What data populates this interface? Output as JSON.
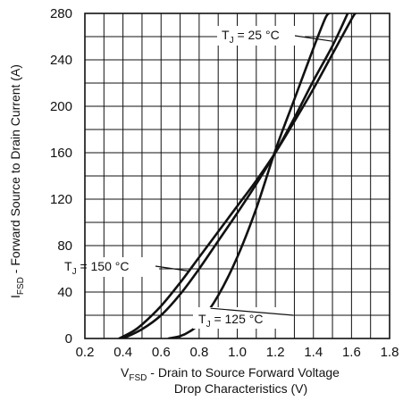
{
  "chart_data": {
    "type": "line",
    "title": "",
    "xlabel": {
      "symbol": "V",
      "subscript": "FSD",
      "text_line1": " - Drain to Source Forward Voltage",
      "text_line2": "Drop Characteristics (V)"
    },
    "ylabel": {
      "symbol": "I",
      "subscript": "FSD",
      "text": " - Forward Source to Drain Current  (A)"
    },
    "xlim": [
      0.2,
      1.8
    ],
    "ylim": [
      0,
      280
    ],
    "xticks": [
      "0.2",
      "0.4",
      "0.6",
      "0.8",
      "1.0",
      "1.2",
      "1.4",
      "1.6",
      "1.8"
    ],
    "yticks": [
      "0",
      "40",
      "80",
      "120",
      "160",
      "200",
      "240",
      "280"
    ],
    "x_minor_step": 0.1,
    "y_minor_step": 20,
    "grid": true,
    "series": [
      {
        "name": "TJ = 25 °C",
        "points": [
          [
            0.64,
            0
          ],
          [
            0.7,
            2
          ],
          [
            0.75,
            6
          ],
          [
            0.8,
            13
          ],
          [
            0.9,
            37
          ],
          [
            1.0,
            70
          ],
          [
            1.1,
            112
          ],
          [
            1.2,
            162
          ],
          [
            1.3,
            206
          ],
          [
            1.4,
            250
          ],
          [
            1.46,
            275
          ],
          [
            1.48,
            280
          ]
        ]
      },
      {
        "name": "TJ = 125 °C",
        "points": [
          [
            0.38,
            0
          ],
          [
            0.45,
            6
          ],
          [
            0.5,
            12
          ],
          [
            0.6,
            28
          ],
          [
            0.7,
            48
          ],
          [
            0.8,
            70
          ],
          [
            0.9,
            92
          ],
          [
            1.0,
            114
          ],
          [
            1.1,
            136
          ],
          [
            1.2,
            160
          ],
          [
            1.3,
            187
          ],
          [
            1.4,
            215
          ],
          [
            1.5,
            245
          ],
          [
            1.6,
            275
          ],
          [
            1.62,
            280
          ]
        ]
      },
      {
        "name": "TJ = 150 °C",
        "points": [
          [
            0.4,
            0
          ],
          [
            0.5,
            8
          ],
          [
            0.6,
            20
          ],
          [
            0.7,
            38
          ],
          [
            0.8,
            60
          ],
          [
            0.9,
            84
          ],
          [
            1.0,
            108
          ],
          [
            1.1,
            133
          ],
          [
            1.2,
            160
          ],
          [
            1.3,
            190
          ],
          [
            1.4,
            222
          ],
          [
            1.5,
            252
          ],
          [
            1.58,
            280
          ]
        ]
      }
    ],
    "annotations": [
      {
        "text_symbol": "T",
        "text_sub": "J",
        "text_rest": " = 25 °C",
        "series": "TJ = 25 °C",
        "anchor": [
          1.5,
          256
        ]
      },
      {
        "text_symbol": "T",
        "text_sub": "J",
        "text_rest": " = 150 °C",
        "series": "TJ = 150 °C",
        "anchor": [
          0.75,
          58
        ]
      },
      {
        "text_symbol": "T",
        "text_sub": "J",
        "text_rest": " = 125 °C",
        "series": "TJ = 125 °C",
        "anchor": [
          0.86,
          26
        ]
      }
    ],
    "colors": {
      "line": "#111111",
      "grid": "#111111",
      "background": "#ffffff"
    }
  }
}
